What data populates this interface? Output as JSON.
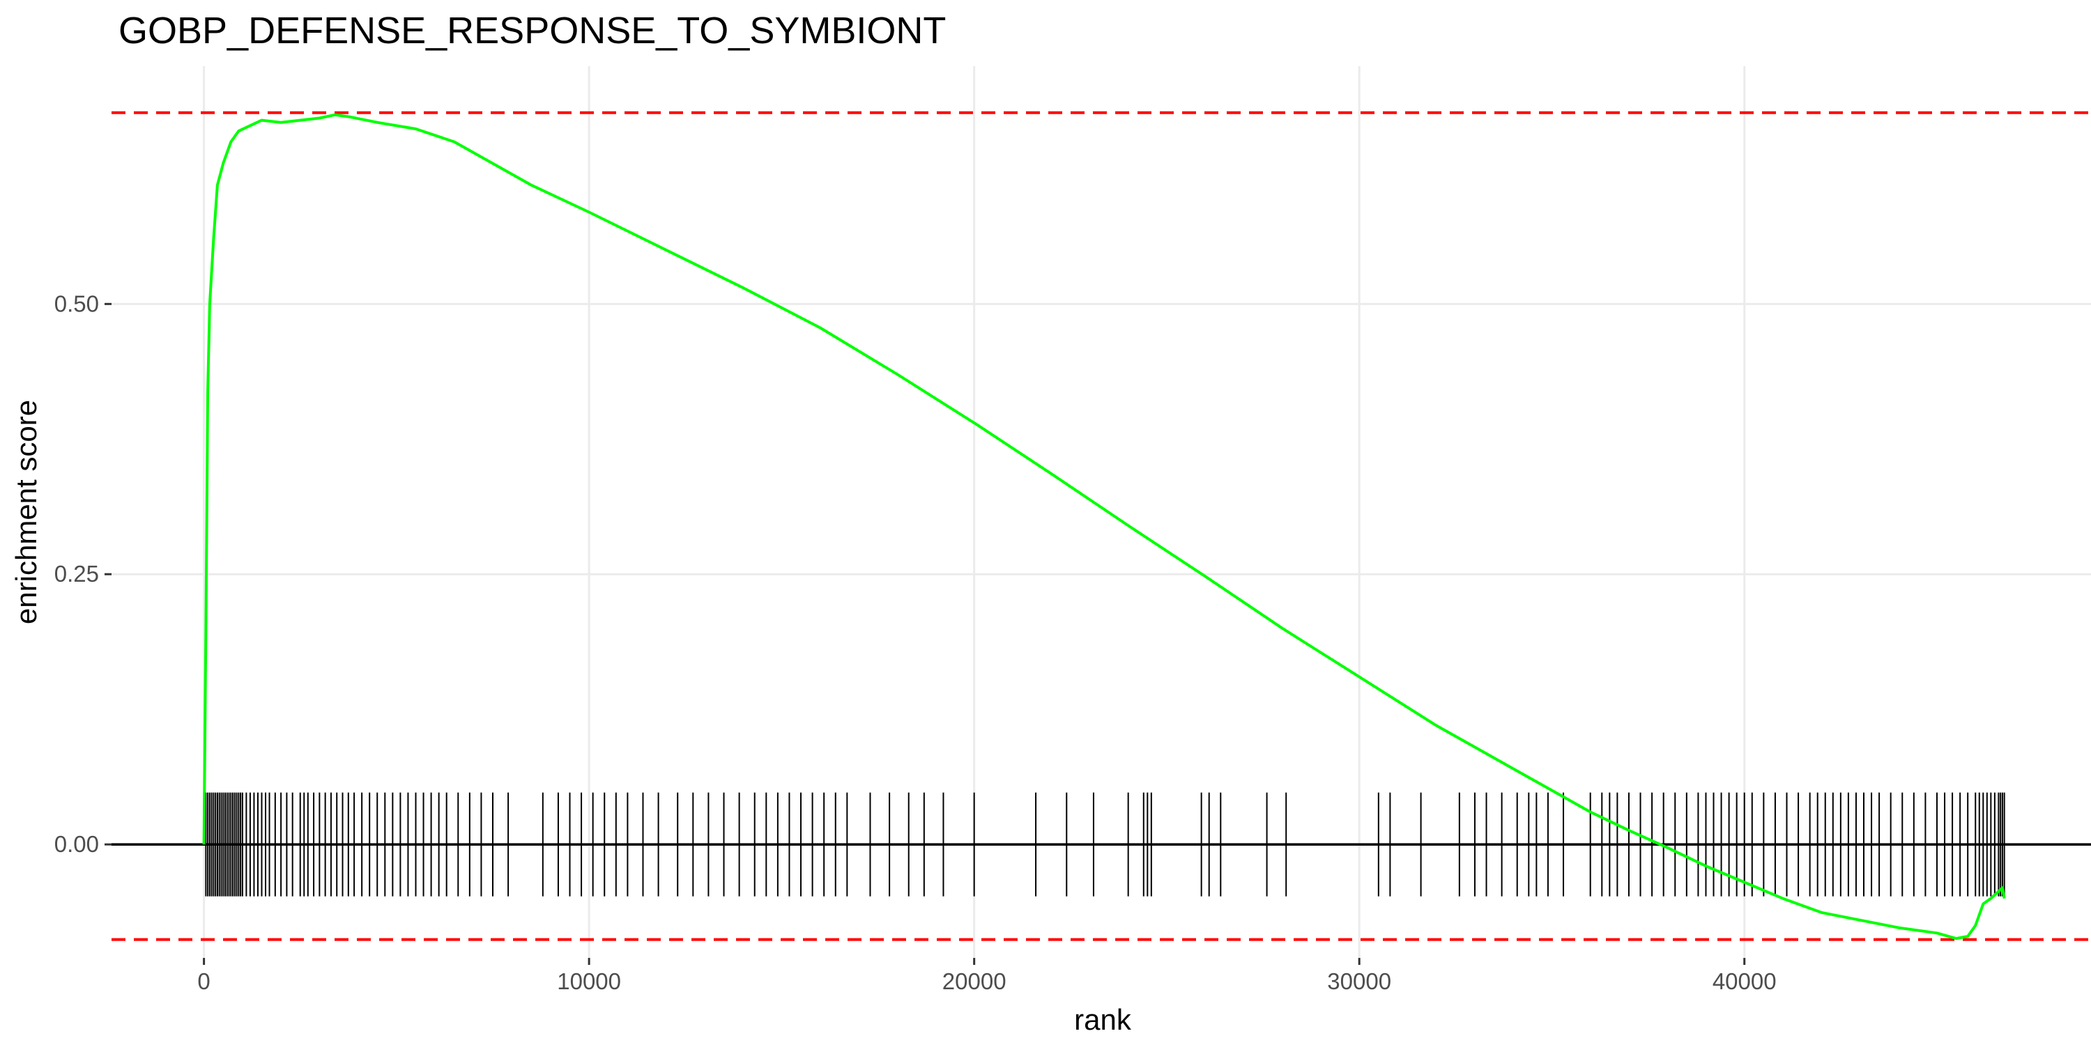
{
  "chart_data": {
    "type": "line",
    "title": "GOBP_DEFENSE_RESPONSE_TO_SYMBIONT",
    "xlabel": "rank",
    "ylabel": "enrichment score",
    "xlim": [
      -2400,
      49000
    ],
    "ylim": [
      -0.105,
      0.72
    ],
    "x_ticks": [
      0,
      10000,
      20000,
      30000,
      40000
    ],
    "x_tick_labels": [
      "0",
      "10000",
      "20000",
      "30000",
      "40000"
    ],
    "y_ticks": [
      0.0,
      0.25,
      0.5
    ],
    "y_tick_labels": [
      "0.00",
      "0.25",
      "0.50"
    ],
    "grid": true,
    "series": [
      {
        "color": "#00ff00",
        "x": [
          0,
          50,
          100,
          150,
          250,
          350,
          500,
          700,
          900,
          1200,
          1500,
          2000,
          2500,
          3000,
          3400,
          3800,
          4500,
          5500,
          6500,
          7500,
          8500,
          10000,
          12000,
          14000,
          16000,
          18000,
          20000,
          22000,
          24000,
          26000,
          28000,
          30000,
          32000,
          34000,
          35000,
          36000,
          37000,
          38000,
          39000,
          40000,
          41000,
          42000,
          43000,
          44000,
          45000,
          45500,
          45800,
          46000,
          46200,
          46400,
          46700,
          46750
        ],
        "y": [
          0.0,
          0.2,
          0.42,
          0.5,
          0.56,
          0.61,
          0.63,
          0.65,
          0.66,
          0.665,
          0.67,
          0.668,
          0.67,
          0.672,
          0.675,
          0.673,
          0.668,
          0.662,
          0.65,
          0.63,
          0.61,
          0.585,
          0.55,
          0.515,
          0.478,
          0.435,
          0.39,
          0.343,
          0.295,
          0.248,
          0.2,
          0.155,
          0.11,
          0.07,
          0.05,
          0.03,
          0.013,
          -0.003,
          -0.02,
          -0.035,
          -0.05,
          -0.063,
          -0.07,
          -0.077,
          -0.082,
          -0.087,
          -0.085,
          -0.075,
          -0.055,
          -0.05,
          -0.04,
          -0.05
        ]
      }
    ],
    "hlines": [
      {
        "y": 0.677,
        "color": "#ff0000",
        "style": "dashed"
      },
      {
        "y": -0.088,
        "color": "#ff0000",
        "style": "dashed"
      },
      {
        "y": 0.0,
        "color": "#000000",
        "style": "solid"
      }
    ],
    "rug": {
      "color": "#000000",
      "ymin": -0.048,
      "ymax": 0.048,
      "x": [
        50,
        100,
        150,
        200,
        250,
        300,
        350,
        400,
        450,
        500,
        550,
        600,
        650,
        700,
        750,
        800,
        850,
        900,
        950,
        1000,
        1100,
        1200,
        1300,
        1400,
        1500,
        1600,
        1700,
        1850,
        2000,
        2150,
        2300,
        2500,
        2600,
        2700,
        2850,
        3000,
        3150,
        3300,
        3450,
        3600,
        3750,
        3900,
        4100,
        4300,
        4500,
        4700,
        4900,
        5100,
        5300,
        5500,
        5700,
        5900,
        6100,
        6300,
        6600,
        6900,
        7200,
        7500,
        7900,
        8800,
        9200,
        9500,
        9800,
        10100,
        10400,
        10700,
        11000,
        11400,
        11800,
        12300,
        12700,
        13100,
        13500,
        13900,
        14300,
        14600,
        14900,
        15200,
        15500,
        15800,
        16100,
        16400,
        16700,
        17300,
        17800,
        18300,
        18700,
        19200,
        20000,
        21600,
        22400,
        23100,
        24000,
        24400,
        24500,
        24600,
        25900,
        26100,
        26400,
        27600,
        28100,
        30500,
        30800,
        31600,
        32600,
        33000,
        33300,
        33700,
        34100,
        34400,
        34600,
        34900,
        35300,
        36000,
        36300,
        36500,
        36700,
        37000,
        37300,
        37600,
        37900,
        38200,
        38500,
        38800,
        39000,
        39200,
        39400,
        39600,
        39800,
        40000,
        40200,
        40500,
        40800,
        41100,
        41400,
        41700,
        41900,
        42100,
        42300,
        42500,
        42700,
        42900,
        43100,
        43300,
        43500,
        43800,
        44100,
        44400,
        44700,
        45000,
        45200,
        45400,
        45600,
        45800,
        46000,
        46100,
        46200,
        46300,
        46400,
        46500,
        46600,
        46650,
        46700,
        46750
      ]
    }
  }
}
